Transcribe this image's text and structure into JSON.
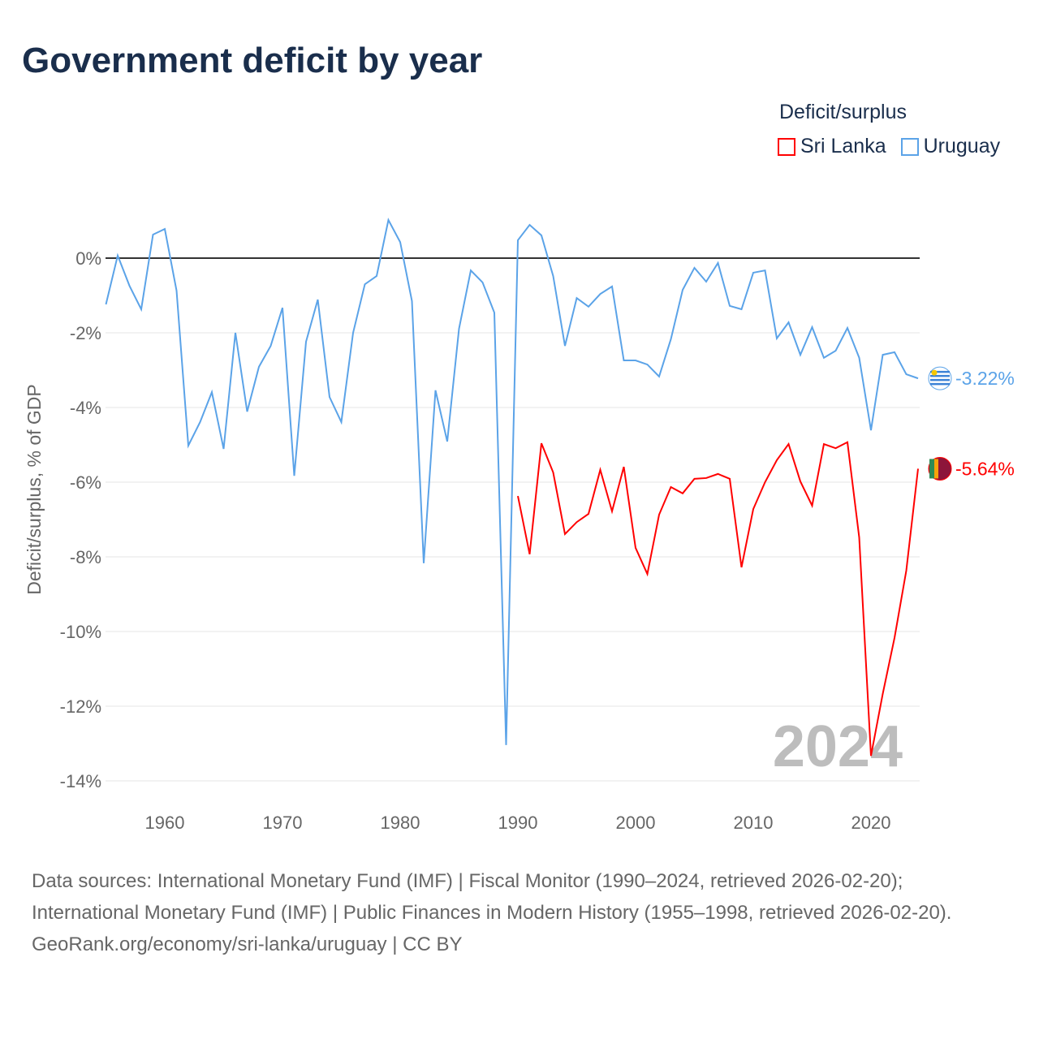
{
  "title": "Government deficit by year",
  "legend": {
    "title": "Deficit/surplus",
    "items": [
      {
        "name": "Sri Lanka",
        "color": "#ff0000"
      },
      {
        "name": "Uruguay",
        "color": "#5ba3e8"
      }
    ]
  },
  "watermark_year": "2024",
  "footer": {
    "sources": "Data sources: International Monetary Fund (IMF) | Fiscal Monitor (1990–2024, retrieved 2026-02-20); International Monetary Fund (IMF) | Public Finances in Modern History (1955–1998, retrieved 2026-02-20).",
    "credit": "GeoRank.org/economy/sri-lanka/uruguay | CC BY"
  },
  "chart_data": {
    "type": "line",
    "title": "Government deficit by year",
    "xlabel": "",
    "ylabel": "Deficit/surplus, % of GDP",
    "xlim": [
      1955,
      2024
    ],
    "ylim": [
      -14.2,
      1.2
    ],
    "xticks": [
      1960,
      1970,
      1980,
      1990,
      2000,
      2010,
      2020
    ],
    "yticks": [
      0,
      -2,
      -4,
      -6,
      -8,
      -10,
      -12,
      -14
    ],
    "ytick_labels": [
      "0%",
      "-2%",
      "-4%",
      "-6%",
      "-8%",
      "-10%",
      "-12%",
      "-14%"
    ],
    "series": [
      {
        "name": "Uruguay",
        "color": "#5ba3e8",
        "end_label": "-3.22%",
        "start": 1955,
        "values": [
          -1.24,
          0.07,
          -0.74,
          -1.37,
          0.63,
          0.78,
          -0.87,
          -5.02,
          -4.39,
          -3.59,
          -5.11,
          -2.0,
          -4.11,
          -2.91,
          -2.35,
          -1.33,
          -5.83,
          -2.24,
          -1.11,
          -3.72,
          -4.39,
          -2.0,
          -0.7,
          -0.48,
          1.02,
          0.43,
          -1.15,
          -8.17,
          -3.54,
          -4.91,
          -1.89,
          -0.33,
          -0.65,
          -1.46,
          -13.04,
          0.48,
          0.89,
          0.61,
          -0.48,
          -2.35,
          -1.07,
          -1.3,
          -0.96,
          -0.76,
          -2.74,
          -2.74,
          -2.85,
          -3.17,
          -2.17,
          -0.85,
          -0.26,
          -0.63,
          -0.13,
          -1.28,
          -1.37,
          -0.39,
          -0.33,
          -2.15,
          -1.72,
          -2.59,
          -1.85,
          -2.67,
          -2.48,
          -1.87,
          -2.67,
          -4.61,
          -2.59,
          -2.52,
          -3.11,
          -3.22
        ]
      },
      {
        "name": "Sri Lanka",
        "color": "#ff0000",
        "end_label": "-5.64%",
        "start": 1990,
        "values": [
          -6.37,
          -7.93,
          -4.96,
          -5.74,
          -7.39,
          -7.07,
          -6.85,
          -5.67,
          -6.78,
          -5.59,
          -7.76,
          -8.46,
          -6.87,
          -6.13,
          -6.3,
          -5.91,
          -5.89,
          -5.78,
          -5.91,
          -8.28,
          -6.72,
          -6.0,
          -5.41,
          -4.98,
          -5.98,
          -6.63,
          -4.98,
          -5.09,
          -4.93,
          -7.48,
          -13.33,
          -11.67,
          -10.17,
          -8.37,
          -5.64
        ]
      }
    ]
  }
}
